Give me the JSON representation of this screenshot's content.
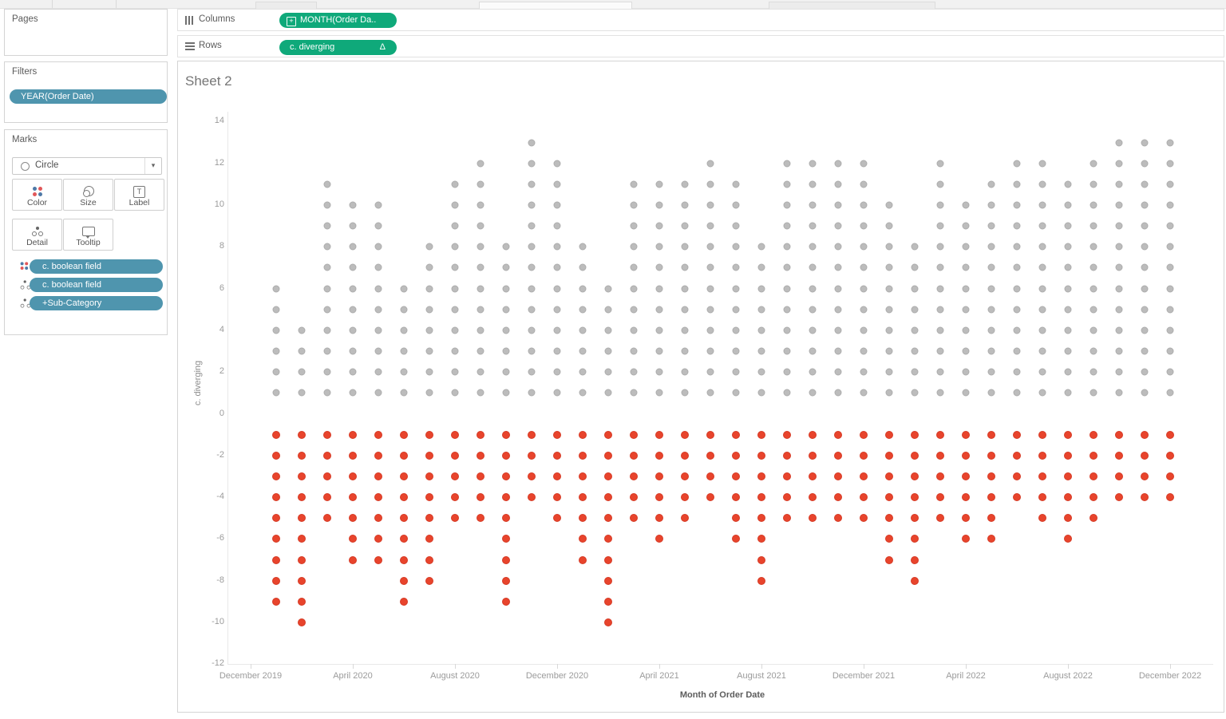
{
  "shelves": {
    "columns": {
      "label": "Columns",
      "pill": {
        "text": "MONTH(Order Da..",
        "plus_icon": "+"
      }
    },
    "rows": {
      "label": "Rows",
      "pill": {
        "text": "c. diverging",
        "delta_icon": "Δ"
      }
    }
  },
  "side_panel": {
    "pages": {
      "title": "Pages"
    },
    "filters": {
      "title": "Filters",
      "pills": [
        {
          "text": "YEAR(Order Date)"
        }
      ]
    },
    "marks": {
      "title": "Marks",
      "mark_type": "Circle",
      "dropdown_caret": "▾",
      "buttons": [
        {
          "label": "Color",
          "icon": "color-icon"
        },
        {
          "label": "Size",
          "icon": "size-icon"
        },
        {
          "label": "Label",
          "icon": "label-icon"
        },
        {
          "label": "Detail",
          "icon": "detail-icon"
        },
        {
          "label": "Tooltip",
          "icon": "tooltip-icon"
        }
      ],
      "pills": [
        {
          "text": "c. boolean field",
          "icon": "color-icon",
          "plus_icon": ""
        },
        {
          "text": "c. boolean field",
          "icon": "detail-icon",
          "plus_icon": ""
        },
        {
          "text": "Sub-Category",
          "icon": "detail-icon",
          "plus_icon": "+"
        }
      ]
    }
  },
  "sheet": {
    "title": "Sheet 2"
  },
  "colors": {
    "teal_pill": "#4f95ae",
    "green_pill": "#0fa97a",
    "positive_dot": "#bcbcbc",
    "negative_dot": "#e8442c",
    "color_icon_blue": "#4e79a7",
    "color_icon_red": "#e15759"
  },
  "chart_data": {
    "type": "scatter",
    "title": "Sheet 2",
    "xlabel": "Month of Order Date",
    "ylabel": "c. diverging",
    "ylim": [
      -12,
      14
    ],
    "grid": false,
    "legend": "none",
    "description": "Diverging unit dot plot: for each month, one dot per Sub-Category stacked at +1..+N (gray, boolean true) and -1..-M (red, boolean false).",
    "y_axis": {
      "ticks": [
        14,
        12,
        10,
        8,
        6,
        4,
        2,
        0,
        -2,
        -4,
        -6,
        -8,
        -10,
        -12
      ]
    },
    "x_axis": {
      "ticks": [
        {
          "label": "December 2019",
          "month_index": 0
        },
        {
          "label": "April 2020",
          "month_index": 4
        },
        {
          "label": "August 2020",
          "month_index": 8
        },
        {
          "label": "December 2020",
          "month_index": 12
        },
        {
          "label": "April 2021",
          "month_index": 16
        },
        {
          "label": "August 2021",
          "month_index": 20
        },
        {
          "label": "December 2021",
          "month_index": 24
        },
        {
          "label": "April 2022",
          "month_index": 28
        },
        {
          "label": "August 2022",
          "month_index": 32
        },
        {
          "label": "December 2022",
          "month_index": 36
        }
      ]
    },
    "series": [
      {
        "month": "January 2020",
        "positive_count": 6,
        "negative_count": 9
      },
      {
        "month": "February 2020",
        "positive_count": 4,
        "negative_count": 10
      },
      {
        "month": "March 2020",
        "positive_count": 11,
        "negative_count": 5
      },
      {
        "month": "April 2020",
        "positive_count": 10,
        "negative_count": 7
      },
      {
        "month": "May 2020",
        "positive_count": 10,
        "negative_count": 7
      },
      {
        "month": "June 2020",
        "positive_count": 6,
        "negative_count": 9
      },
      {
        "month": "July 2020",
        "positive_count": 8,
        "negative_count": 8
      },
      {
        "month": "August 2020",
        "positive_count": 11,
        "negative_count": 5
      },
      {
        "month": "September 2020",
        "positive_count": 12,
        "negative_count": 5
      },
      {
        "month": "October 2020",
        "positive_count": 8,
        "negative_count": 9
      },
      {
        "month": "November 2020",
        "positive_count": 13,
        "negative_count": 4
      },
      {
        "month": "December 2020",
        "positive_count": 12,
        "negative_count": 5
      },
      {
        "month": "January 2021",
        "positive_count": 8,
        "negative_count": 7
      },
      {
        "month": "February 2021",
        "positive_count": 6,
        "negative_count": 10
      },
      {
        "month": "March 2021",
        "positive_count": 11,
        "negative_count": 5
      },
      {
        "month": "April 2021",
        "positive_count": 11,
        "negative_count": 6
      },
      {
        "month": "May 2021",
        "positive_count": 11,
        "negative_count": 5
      },
      {
        "month": "June 2021",
        "positive_count": 12,
        "negative_count": 4
      },
      {
        "month": "July 2021",
        "positive_count": 11,
        "negative_count": 6
      },
      {
        "month": "August 2021",
        "positive_count": 8,
        "negative_count": 8
      },
      {
        "month": "September 2021",
        "positive_count": 12,
        "negative_count": 5
      },
      {
        "month": "October 2021",
        "positive_count": 12,
        "negative_count": 5
      },
      {
        "month": "November 2021",
        "positive_count": 12,
        "negative_count": 5
      },
      {
        "month": "December 2021",
        "positive_count": 12,
        "negative_count": 5
      },
      {
        "month": "January 2022",
        "positive_count": 10,
        "negative_count": 7
      },
      {
        "month": "February 2022",
        "positive_count": 8,
        "negative_count": 8
      },
      {
        "month": "March 2022",
        "positive_count": 12,
        "negative_count": 5
      },
      {
        "month": "April 2022",
        "positive_count": 10,
        "negative_count": 6
      },
      {
        "month": "May 2022",
        "positive_count": 11,
        "negative_count": 6
      },
      {
        "month": "June 2022",
        "positive_count": 12,
        "negative_count": 4
      },
      {
        "month": "July 2022",
        "positive_count": 12,
        "negative_count": 5
      },
      {
        "month": "August 2022",
        "positive_count": 11,
        "negative_count": 6
      },
      {
        "month": "September 2022",
        "positive_count": 12,
        "negative_count": 5
      },
      {
        "month": "October 2022",
        "positive_count": 13,
        "negative_count": 4
      },
      {
        "month": "November 2022",
        "positive_count": 13,
        "negative_count": 4
      },
      {
        "month": "December 2022",
        "positive_count": 13,
        "negative_count": 4
      }
    ]
  }
}
